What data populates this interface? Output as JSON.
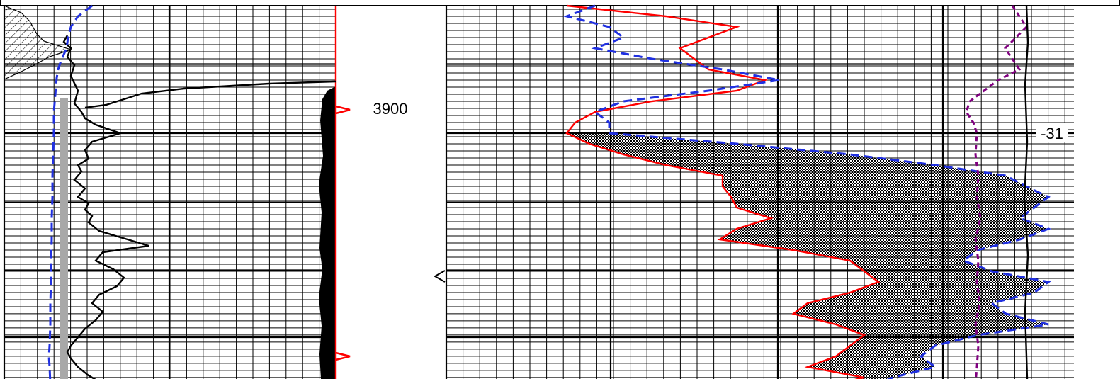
{
  "chart_data": {
    "type": "line",
    "title": "",
    "depth_label": "3900",
    "tracks": [
      {
        "name": "left",
        "grid": true,
        "curves": [
          {
            "color": "#000000",
            "style": "solid",
            "depth": [
              3895.4,
              3895.7,
              3896.0,
              3896.4,
              3896.8,
              3897.3,
              3898.0,
              3898.6,
              3899.0,
              3899.3,
              3899.6,
              3900.0,
              3900.4,
              3900.8,
              3901.2,
              3901.5,
              3901.8,
              3902.2,
              3902.6,
              3903.0,
              3903.3,
              3903.6,
              3903.9,
              3904.2,
              3904.6,
              3905.0,
              3905.3,
              3905.6,
              3906.0,
              3906.4,
              3906.8,
              3907.2,
              3907.6,
              3908.0,
              3908.4,
              3908.8,
              3909.2,
              3909.6,
              3910.0,
              3910.3,
              3910.6,
              3911.0,
              3911.4,
              3911.8
            ],
            "value": [
              0.05,
              0.0,
              0.1,
              0.05,
              0.15,
              0.1,
              0.2,
              0.15,
              0.25,
              0.3,
              0.45,
              0.8,
              0.4,
              0.3,
              0.35,
              0.2,
              0.25,
              0.15,
              0.3,
              0.2,
              0.35,
              0.3,
              0.4,
              0.35,
              0.5,
              0.9,
              1.2,
              0.55,
              0.45,
              0.7,
              0.85,
              0.75,
              0.5,
              0.4,
              0.55,
              0.45,
              0.3,
              0.2,
              0.1,
              0.05,
              0.1,
              0.2,
              0.35,
              0.55
            ]
          },
          {
            "color": "#2030e0",
            "style": "dashed",
            "depth": [
              3894.0,
              3894.5,
              3895.0,
              3895.5,
              3896.0,
              3896.3,
              3896.6,
              3897.0,
              3897.4,
              3897.8,
              3898.2,
              3898.6,
              3899.0,
              3900.0,
              3901.0,
              3902.0,
              3903.0,
              3904.0,
              3905.0,
              3906.0,
              3907.0,
              3908.0,
              3909.0,
              3910.0,
              3910.5,
              3911.0,
              3911.8
            ],
            "value": [
              6.0,
              5.0,
              4.5,
              4.3,
              4.2,
              4.0,
              3.8,
              3.6,
              3.5,
              3.45,
              3.4,
              3.35,
              3.3,
              3.3,
              3.25,
              3.2,
              3.2,
              3.15,
              3.15,
              3.1,
              3.1,
              3.05,
              3.05,
              3.0,
              2.95,
              3.0,
              3.05
            ]
          },
          {
            "color": "#ff0000",
            "style": "solid",
            "depth": [
              3894.0,
              3911.8
            ],
            "value": [
              20.0,
              20.0
            ]
          }
        ],
        "markers": [
          3898.9,
          3910.5
        ]
      },
      {
        "name": "right",
        "grid": true,
        "curves": [
          {
            "color": "#ff0000",
            "style": "solid",
            "depth": [
              3894.0,
              3894.5,
              3895.0,
              3895.5,
              3896.0,
              3896.5,
              3897.0,
              3897.5,
              3898.0,
              3898.5,
              3899.0,
              3899.5,
              3900.0,
              3900.5,
              3901.0,
              3901.5,
              3902.0,
              3902.5,
              3903.0,
              3903.5,
              3904.0,
              3904.5,
              3905.0,
              3905.5,
              3906.0,
              3906.5,
              3907.0,
              3907.5,
              3908.0,
              3908.5,
              3909.0,
              3909.5,
              3910.0,
              3910.5,
              3911.0,
              3911.5,
              3911.8
            ],
            "value": [
              0.0,
              0.35,
              0.6,
              0.5,
              0.4,
              0.45,
              0.5,
              0.7,
              0.6,
              0.3,
              0.1,
              0.03,
              0.0,
              0.08,
              0.2,
              0.35,
              0.55,
              0.55,
              0.58,
              0.6,
              0.72,
              0.6,
              0.54,
              0.8,
              1.0,
              1.05,
              1.1,
              1.0,
              0.85,
              0.8,
              0.95,
              1.05,
              1.0,
              0.95,
              0.85,
              1.05,
              0.95
            ]
          },
          {
            "color": "#2030e0",
            "style": "dashed",
            "depth": [
              3894.0,
              3894.5,
              3895.0,
              3895.5,
              3896.0,
              3896.5,
              3897.0,
              3897.5,
              3898.0,
              3898.5,
              3899.0,
              3899.5,
              3900.0,
              3900.5,
              3901.0,
              3901.5,
              3902.0,
              3902.5,
              3903.0,
              3903.5,
              3904.0,
              3904.5,
              3905.0,
              3905.5,
              3906.0,
              3906.5,
              3907.0,
              3907.5,
              3908.0,
              3908.5,
              3909.0,
              3909.5,
              3910.0,
              3910.5,
              3911.0,
              3911.5,
              3911.8
            ],
            "value": [
              0.1,
              0.0,
              0.15,
              0.2,
              0.1,
              0.3,
              0.55,
              0.75,
              0.5,
              0.2,
              0.1,
              0.15,
              0.15,
              0.6,
              1.0,
              1.3,
              1.55,
              1.62,
              1.7,
              1.65,
              1.6,
              1.7,
              1.6,
              1.45,
              1.4,
              1.5,
              1.7,
              1.65,
              1.5,
              1.55,
              1.7,
              1.45,
              1.3,
              1.25,
              1.3,
              1.15,
              1.1
            ]
          },
          {
            "color": "#800080",
            "style": "dashed",
            "depth": [
              3894.0,
              3894.5,
              3895.0,
              3895.5,
              3896.0,
              3896.5,
              3897.0,
              3897.5,
              3898.0,
              3898.5,
              3899.0,
              3899.5,
              3900.0,
              3901.0,
              3902.0,
              3903.0,
              3904.0,
              3905.0,
              3906.0,
              3907.0,
              3908.0,
              3909.0,
              3910.0,
              3911.0,
              3911.8
            ],
            "value": [
              -31.2,
              -31.1,
              -31.0,
              -31.15,
              -31.3,
              -31.2,
              -31.1,
              -31.4,
              -31.6,
              -31.8,
              -31.85,
              -31.75,
              -31.7,
              -31.72,
              -31.68,
              -31.7,
              -31.65,
              -31.72,
              -31.68,
              -31.7,
              -31.66,
              -31.72,
              -31.68,
              -31.7,
              -31.72
            ]
          },
          {
            "color": "#000000",
            "style": "solid",
            "depth": [
              3894.0,
              3911.8
            ],
            "value": [
              -31.0,
              -31.0
            ]
          }
        ],
        "annotations": [
          {
            "text": "-31",
            "depth": 3900.0,
            "value": -31.0
          }
        ]
      }
    ]
  }
}
